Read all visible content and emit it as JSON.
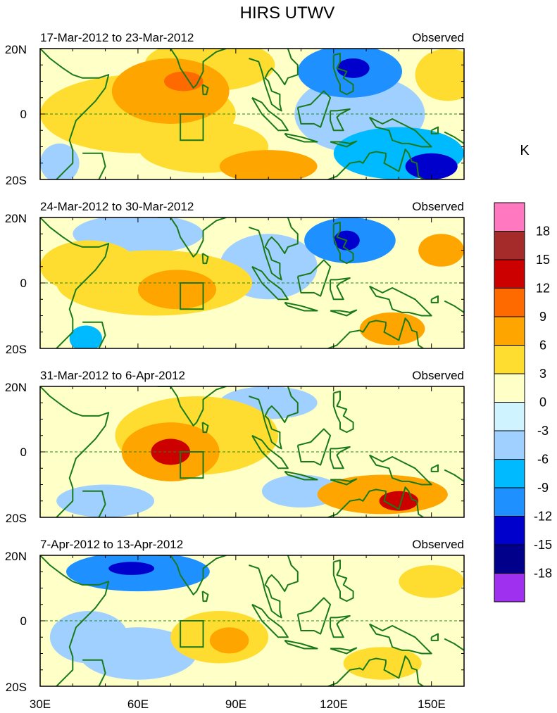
{
  "chart_data": {
    "type": "heatmap",
    "title": "HIRS UTWV",
    "units": "K",
    "panel_source_label": "Observed",
    "lon_range": [
      30,
      160
    ],
    "lat_range": [
      -20,
      20
    ],
    "x_ticks": [
      {
        "value": 30,
        "label": "30E"
      },
      {
        "value": 60,
        "label": "60E"
      },
      {
        "value": 90,
        "label": "90E"
      },
      {
        "value": 120,
        "label": "120E"
      },
      {
        "value": 150,
        "label": "150E"
      }
    ],
    "y_ticks": [
      {
        "value": 20,
        "label": "20N"
      },
      {
        "value": 0,
        "label": "0"
      },
      {
        "value": -20,
        "label": "20S"
      }
    ],
    "box_region": {
      "lon": [
        73,
        80
      ],
      "lat": [
        -8,
        0
      ]
    },
    "colorbar": {
      "levels": [
        "18",
        "15",
        "12",
        "9",
        "6",
        "3",
        "0",
        "-3",
        "-6",
        "-9",
        "-12",
        "-15",
        "-18"
      ],
      "colors": [
        "#ff78c0",
        "#a52a2a",
        "#cd0000",
        "#ff6a00",
        "#ffa500",
        "#ffdd30",
        "#ffffc8",
        "#d0f4ff",
        "#a0d0ff",
        "#00baff",
        "#1e90ff",
        "#0000cd",
        "#00008b",
        "#a030f0"
      ]
    },
    "panels": [
      {
        "period": "17-Mar-2012 to 23-Mar-2012",
        "anomalies": [
          {
            "lon": 70,
            "lat": 7,
            "value": 9,
            "rx": 18,
            "ry": 10
          },
          {
            "lon": 74,
            "lat": 10,
            "value": 11,
            "rx": 6,
            "ry": 3
          },
          {
            "lon": 60,
            "lat": 0,
            "value": 6,
            "rx": 30,
            "ry": 12
          },
          {
            "lon": 82,
            "lat": 15,
            "value": 5,
            "rx": 20,
            "ry": 8
          },
          {
            "lon": 100,
            "lat": -16,
            "value": 9,
            "rx": 15,
            "ry": 5
          },
          {
            "lon": 80,
            "lat": -10,
            "value": 4,
            "rx": 20,
            "ry": 8
          },
          {
            "lon": 36,
            "lat": -15,
            "value": -3,
            "rx": 6,
            "ry": 6
          },
          {
            "lon": 125,
            "lat": 13,
            "value": -9,
            "rx": 16,
            "ry": 8
          },
          {
            "lon": 126,
            "lat": 14,
            "value": -14,
            "rx": 5,
            "ry": 3
          },
          {
            "lon": 140,
            "lat": -12,
            "value": -8,
            "rx": 20,
            "ry": 8
          },
          {
            "lon": 150,
            "lat": -16,
            "value": -14,
            "rx": 8,
            "ry": 4
          },
          {
            "lon": 128,
            "lat": 0,
            "value": -4,
            "rx": 20,
            "ry": 12
          },
          {
            "lon": 155,
            "lat": 12,
            "value": 4,
            "rx": 10,
            "ry": 8
          }
        ]
      },
      {
        "period": "24-Mar-2012 to 30-Mar-2012",
        "anomalies": [
          {
            "lon": 72,
            "lat": -2,
            "value": 9,
            "rx": 12,
            "ry": 6
          },
          {
            "lon": 65,
            "lat": 0,
            "value": 5,
            "rx": 30,
            "ry": 10
          },
          {
            "lon": 45,
            "lat": 5,
            "value": 5,
            "rx": 15,
            "ry": 8
          },
          {
            "lon": 60,
            "lat": 15,
            "value": -3,
            "rx": 20,
            "ry": 6
          },
          {
            "lon": 44,
            "lat": -17,
            "value": -7,
            "rx": 5,
            "ry": 4
          },
          {
            "lon": 125,
            "lat": 13,
            "value": -10,
            "rx": 14,
            "ry": 7
          },
          {
            "lon": 124,
            "lat": 13,
            "value": -14,
            "rx": 4,
            "ry": 3
          },
          {
            "lon": 138,
            "lat": -14,
            "value": 8,
            "rx": 10,
            "ry": 5
          },
          {
            "lon": 153,
            "lat": 10,
            "value": 7,
            "rx": 7,
            "ry": 5
          },
          {
            "lon": 100,
            "lat": 5,
            "value": -3,
            "rx": 15,
            "ry": 10
          },
          {
            "lon": 100,
            "lat": -15,
            "value": 2,
            "rx": 18,
            "ry": 6
          }
        ]
      },
      {
        "period": "31-Mar-2012 to 6-Apr-2012",
        "anomalies": [
          {
            "lon": 70,
            "lat": 0,
            "value": 9,
            "rx": 15,
            "ry": 9
          },
          {
            "lon": 70,
            "lat": 0,
            "value": 13,
            "rx": 6,
            "ry": 4
          },
          {
            "lon": 78,
            "lat": 5,
            "value": 5,
            "rx": 25,
            "ry": 12
          },
          {
            "lon": 135,
            "lat": -13,
            "value": 9,
            "rx": 20,
            "ry": 6
          },
          {
            "lon": 140,
            "lat": -15,
            "value": 13,
            "rx": 6,
            "ry": 3
          },
          {
            "lon": 50,
            "lat": -15,
            "value": -4,
            "rx": 15,
            "ry": 5
          },
          {
            "lon": 100,
            "lat": 15,
            "value": -4,
            "rx": 15,
            "ry": 5
          },
          {
            "lon": 40,
            "lat": 10,
            "value": 3,
            "rx": 10,
            "ry": 8
          },
          {
            "lon": 110,
            "lat": -12,
            "value": -3,
            "rx": 12,
            "ry": 5
          }
        ]
      },
      {
        "period": "7-Apr-2012 to 13-Apr-2012",
        "anomalies": [
          {
            "lon": 60,
            "lat": 15,
            "value": -9,
            "rx": 22,
            "ry": 6
          },
          {
            "lon": 58,
            "lat": 16,
            "value": -14,
            "rx": 7,
            "ry": 2
          },
          {
            "lon": 85,
            "lat": -5,
            "value": 6,
            "rx": 15,
            "ry": 8
          },
          {
            "lon": 88,
            "lat": -6,
            "value": 9,
            "rx": 6,
            "ry": 4
          },
          {
            "lon": 150,
            "lat": 12,
            "value": 6,
            "rx": 10,
            "ry": 5
          },
          {
            "lon": 135,
            "lat": -13,
            "value": 6,
            "rx": 12,
            "ry": 5
          },
          {
            "lon": 60,
            "lat": -10,
            "value": -5,
            "rx": 18,
            "ry": 8
          },
          {
            "lon": 45,
            "lat": -5,
            "value": -3,
            "rx": 12,
            "ry": 8
          },
          {
            "lon": 100,
            "lat": 12,
            "value": 3,
            "rx": 12,
            "ry": 6
          }
        ]
      }
    ]
  }
}
